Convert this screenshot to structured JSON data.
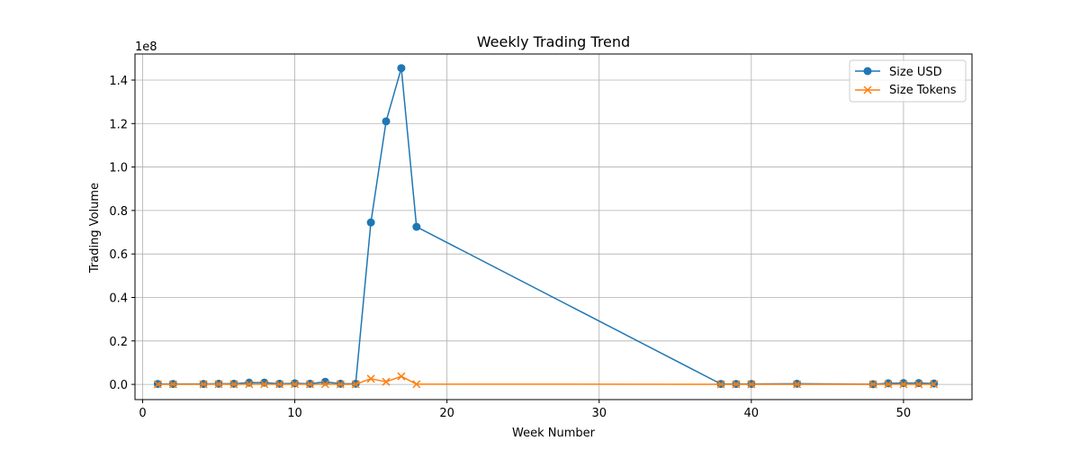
{
  "chart_data": {
    "type": "line",
    "title": "Weekly Trading Trend",
    "xlabel": "Week Number",
    "ylabel": "Trading Volume",
    "y_scale_label": "1e8",
    "xlim": [
      -0.5,
      54.5
    ],
    "ylim": [
      -0.07,
      1.52
    ],
    "y_scale_factor": 100000000,
    "xticks": [
      0,
      10,
      20,
      30,
      40,
      50
    ],
    "yticks": [
      0.0,
      0.2,
      0.4,
      0.6,
      0.8,
      1.0,
      1.2,
      1.4
    ],
    "ytick_labels": [
      "0.0",
      "0.2",
      "0.4",
      "0.6",
      "0.8",
      "1.0",
      "1.2",
      "1.4"
    ],
    "grid": true,
    "legend_placement": "top-right",
    "series": [
      {
        "name": "Size USD",
        "color": "#1f77b4",
        "marker": "circle",
        "x": [
          1,
          2,
          4,
          5,
          6,
          7,
          8,
          9,
          10,
          11,
          12,
          13,
          14,
          15,
          16,
          17,
          18,
          38,
          39,
          40,
          43,
          48,
          49,
          50,
          51,
          52
        ],
        "values": [
          0.002,
          0.002,
          0.002,
          0.003,
          0.003,
          0.008,
          0.008,
          0.003,
          0.005,
          0.003,
          0.012,
          0.003,
          0.003,
          0.745,
          1.21,
          1.455,
          0.725,
          0.002,
          0.002,
          0.002,
          0.003,
          0.001,
          0.005,
          0.006,
          0.006,
          0.004
        ]
      },
      {
        "name": "Size Tokens",
        "color": "#ff7f0e",
        "marker": "x",
        "x": [
          1,
          2,
          4,
          5,
          6,
          7,
          8,
          9,
          10,
          11,
          12,
          13,
          14,
          15,
          16,
          17,
          18,
          38,
          39,
          40,
          43,
          48,
          49,
          50,
          51,
          52
        ],
        "values": [
          0.0005,
          0.0005,
          0.0005,
          0.0008,
          0.0005,
          0.0008,
          0.001,
          0.0005,
          0.0008,
          0.0005,
          0.001,
          0.0005,
          0.0005,
          0.026,
          0.012,
          0.037,
          0.001,
          0.0005,
          0.0005,
          0.0005,
          0.0005,
          0.0005,
          0.0005,
          0.0005,
          0.0005,
          0.0005
        ]
      }
    ]
  }
}
